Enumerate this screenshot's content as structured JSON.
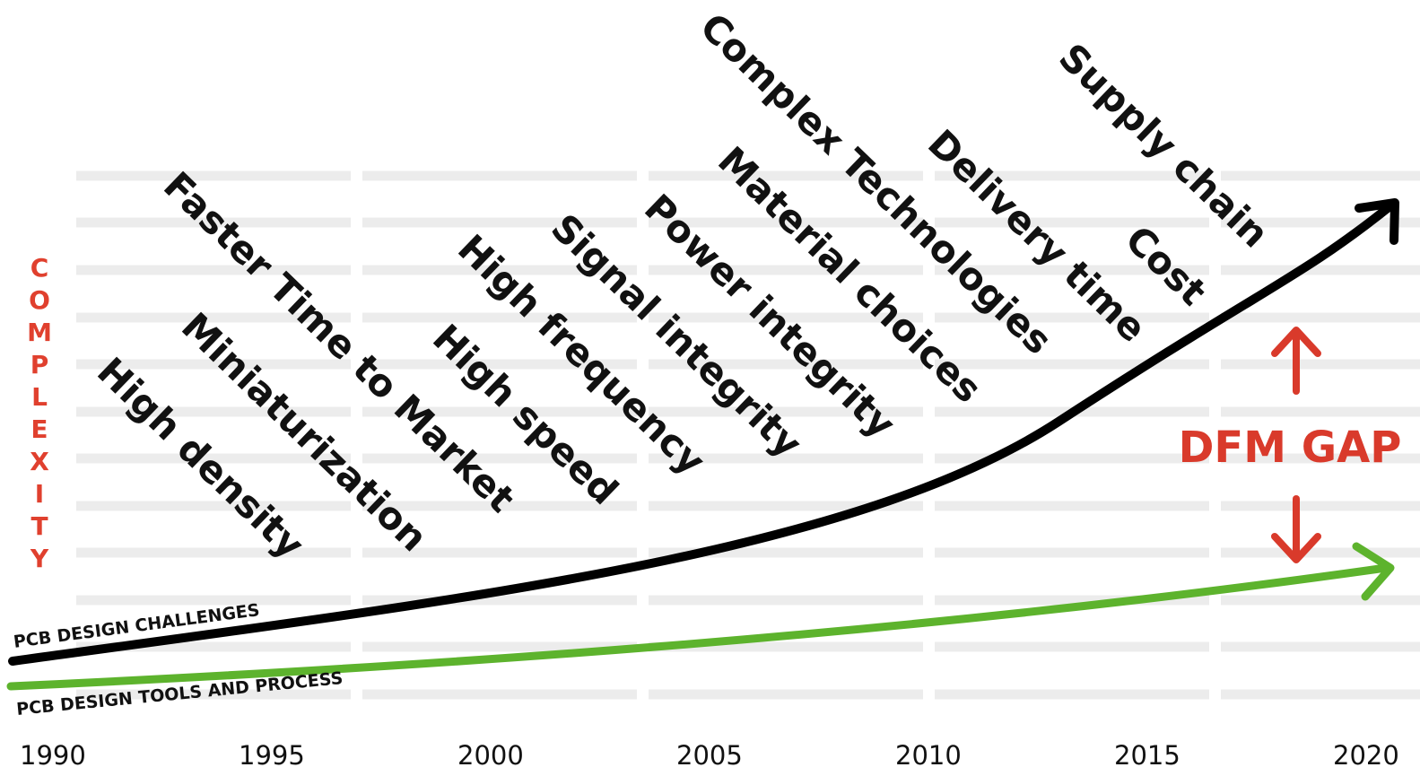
{
  "axis": {
    "label_letters": [
      "C",
      "O",
      "M",
      "P",
      "L",
      "E",
      "X",
      "I",
      "T",
      "Y"
    ],
    "years": [
      "1990",
      "1995",
      "2000",
      "2005",
      "2010",
      "2015",
      "2020"
    ]
  },
  "curves": {
    "challenges_label": "PCB DESIGN CHALLENGES",
    "tools_label": "PCB DESIGN TOOLS AND PROCESS"
  },
  "challenges": [
    "High density",
    "Miniaturization",
    "Faster Time to Market",
    "High speed",
    "High frequency",
    "Signal integrity",
    "Power integrity",
    "Material choices",
    "Complex Technologies",
    "Delivery time",
    "Cost",
    "Supply chain"
  ],
  "gap": {
    "label": "DFM GAP"
  },
  "colors": {
    "complexity": "#e0402e",
    "gap": "#d93a2b",
    "challenges_curve": "#000000",
    "tools_curve": "#5db32d",
    "grid": "#ececec"
  }
}
